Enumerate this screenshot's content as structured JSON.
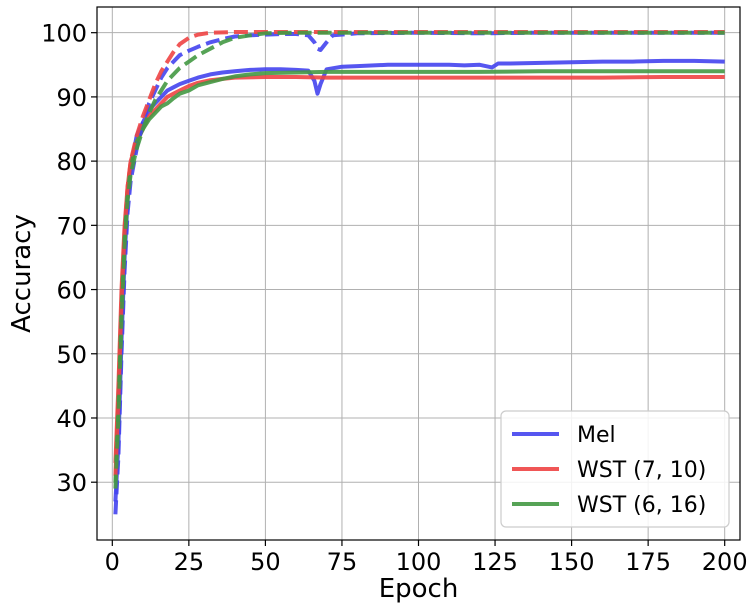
{
  "chart_data": {
    "type": "line",
    "xlabel": "Epoch",
    "ylabel": "Accuracy",
    "xlim": [
      -5,
      205
    ],
    "ylim": [
      21,
      104
    ],
    "x_ticks": [
      0,
      25,
      50,
      75,
      100,
      125,
      150,
      175,
      200
    ],
    "y_ticks": [
      30,
      40,
      50,
      60,
      70,
      80,
      90,
      100
    ],
    "grid": true,
    "legend_position": "lower-right",
    "series": [
      {
        "name": "Mel",
        "color": "#4444ee",
        "style": "solid",
        "points": [
          [
            1,
            27
          ],
          [
            2,
            36
          ],
          [
            3,
            52
          ],
          [
            4,
            65
          ],
          [
            5,
            74
          ],
          [
            6,
            79
          ],
          [
            8,
            84
          ],
          [
            10,
            86
          ],
          [
            12,
            88
          ],
          [
            14,
            89
          ],
          [
            16,
            90
          ],
          [
            18,
            91
          ],
          [
            20,
            91.5
          ],
          [
            22,
            92
          ],
          [
            25,
            92.5
          ],
          [
            28,
            93
          ],
          [
            32,
            93.5
          ],
          [
            36,
            93.8
          ],
          [
            40,
            94
          ],
          [
            45,
            94.2
          ],
          [
            50,
            94.3
          ],
          [
            55,
            94.3
          ],
          [
            60,
            94.2
          ],
          [
            64,
            94.1
          ],
          [
            66,
            92.5
          ],
          [
            67,
            90.5
          ],
          [
            68,
            92
          ],
          [
            70,
            94.3
          ],
          [
            75,
            94.7
          ],
          [
            80,
            94.8
          ],
          [
            90,
            95
          ],
          [
            100,
            95
          ],
          [
            110,
            95
          ],
          [
            115,
            94.9
          ],
          [
            120,
            95
          ],
          [
            124,
            94.6
          ],
          [
            126,
            95.2
          ],
          [
            130,
            95.2
          ],
          [
            140,
            95.3
          ],
          [
            150,
            95.4
          ],
          [
            160,
            95.5
          ],
          [
            170,
            95.5
          ],
          [
            180,
            95.6
          ],
          [
            190,
            95.6
          ],
          [
            200,
            95.5
          ]
        ]
      },
      {
        "name": "WST (7, 10)",
        "color": "#ee4444",
        "style": "solid",
        "points": [
          [
            1,
            33
          ],
          [
            2,
            45
          ],
          [
            3,
            60
          ],
          [
            4,
            70
          ],
          [
            5,
            76
          ],
          [
            6,
            80
          ],
          [
            8,
            83
          ],
          [
            10,
            85
          ],
          [
            12,
            87
          ],
          [
            14,
            88
          ],
          [
            16,
            89
          ],
          [
            18,
            90
          ],
          [
            20,
            90.5
          ],
          [
            22,
            91
          ],
          [
            25,
            91.7
          ],
          [
            28,
            92.2
          ],
          [
            32,
            92.6
          ],
          [
            36,
            92.8
          ],
          [
            40,
            93
          ],
          [
            50,
            93.1
          ],
          [
            60,
            93.1
          ],
          [
            70,
            93
          ],
          [
            80,
            93
          ],
          [
            100,
            93
          ],
          [
            120,
            93
          ],
          [
            140,
            93
          ],
          [
            160,
            93
          ],
          [
            180,
            93.1
          ],
          [
            200,
            93.1
          ]
        ]
      },
      {
        "name": "WST (6, 16)",
        "color": "#449944",
        "style": "solid",
        "points": [
          [
            1,
            30
          ],
          [
            2,
            42
          ],
          [
            3,
            57
          ],
          [
            4,
            68
          ],
          [
            5,
            75
          ],
          [
            6,
            79
          ],
          [
            8,
            83
          ],
          [
            10,
            85
          ],
          [
            12,
            86.5
          ],
          [
            14,
            87.5
          ],
          [
            16,
            88.5
          ],
          [
            18,
            89
          ],
          [
            20,
            89.8
          ],
          [
            22,
            90.5
          ],
          [
            25,
            91
          ],
          [
            28,
            91.8
          ],
          [
            32,
            92.3
          ],
          [
            36,
            92.8
          ],
          [
            40,
            93.2
          ],
          [
            45,
            93.5
          ],
          [
            50,
            93.7
          ],
          [
            60,
            93.8
          ],
          [
            70,
            93.9
          ],
          [
            80,
            93.9
          ],
          [
            100,
            93.9
          ],
          [
            120,
            93.9
          ],
          [
            140,
            94
          ],
          [
            160,
            94
          ],
          [
            180,
            94
          ],
          [
            200,
            94
          ]
        ]
      },
      {
        "name": "",
        "color": "#4444ee",
        "style": "dashed",
        "points": [
          [
            1,
            25
          ],
          [
            2,
            34
          ],
          [
            3,
            50
          ],
          [
            4,
            63
          ],
          [
            5,
            72
          ],
          [
            6,
            77
          ],
          [
            8,
            82
          ],
          [
            10,
            86
          ],
          [
            12,
            89
          ],
          [
            14,
            91
          ],
          [
            16,
            93
          ],
          [
            18,
            94.5
          ],
          [
            20,
            95.5
          ],
          [
            22,
            96.5
          ],
          [
            25,
            97.2
          ],
          [
            28,
            97.8
          ],
          [
            32,
            98.5
          ],
          [
            36,
            99
          ],
          [
            40,
            99.4
          ],
          [
            45,
            99.6
          ],
          [
            50,
            99.7
          ],
          [
            55,
            99.8
          ],
          [
            60,
            99.8
          ],
          [
            64,
            99.6
          ],
          [
            66,
            98.5
          ],
          [
            67,
            97.5
          ],
          [
            68,
            97.3
          ],
          [
            70,
            98.5
          ],
          [
            72,
            99.6
          ],
          [
            80,
            99.9
          ],
          [
            100,
            100
          ],
          [
            120,
            99.9
          ],
          [
            140,
            100
          ],
          [
            160,
            100
          ],
          [
            180,
            100
          ],
          [
            200,
            100
          ]
        ]
      },
      {
        "name": "",
        "color": "#ee4444",
        "style": "dashed",
        "points": [
          [
            1,
            31
          ],
          [
            2,
            43
          ],
          [
            3,
            58
          ],
          [
            4,
            69
          ],
          [
            5,
            76
          ],
          [
            6,
            80
          ],
          [
            8,
            84
          ],
          [
            10,
            87
          ],
          [
            12,
            89.5
          ],
          [
            14,
            92
          ],
          [
            16,
            94
          ],
          [
            18,
            95.5
          ],
          [
            20,
            97
          ],
          [
            22,
            98.2
          ],
          [
            25,
            99.2
          ],
          [
            28,
            99.7
          ],
          [
            32,
            100
          ],
          [
            40,
            100.1
          ],
          [
            60,
            100.1
          ],
          [
            80,
            100.1
          ],
          [
            100,
            100.1
          ],
          [
            150,
            100.1
          ],
          [
            200,
            100.1
          ]
        ]
      },
      {
        "name": "",
        "color": "#449944",
        "style": "dashed",
        "points": [
          [
            1,
            29
          ],
          [
            2,
            40
          ],
          [
            3,
            55
          ],
          [
            4,
            67
          ],
          [
            5,
            74
          ],
          [
            6,
            78
          ],
          [
            8,
            82
          ],
          [
            10,
            85
          ],
          [
            12,
            87.5
          ],
          [
            14,
            89.5
          ],
          [
            16,
            91
          ],
          [
            18,
            92.5
          ],
          [
            20,
            93.5
          ],
          [
            22,
            94.5
          ],
          [
            25,
            95.5
          ],
          [
            28,
            96.5
          ],
          [
            32,
            97.5
          ],
          [
            36,
            98.5
          ],
          [
            40,
            99.2
          ],
          [
            45,
            99.6
          ],
          [
            50,
            99.9
          ],
          [
            60,
            100
          ],
          [
            80,
            100
          ],
          [
            100,
            100
          ],
          [
            150,
            100
          ],
          [
            200,
            100
          ]
        ]
      }
    ]
  }
}
